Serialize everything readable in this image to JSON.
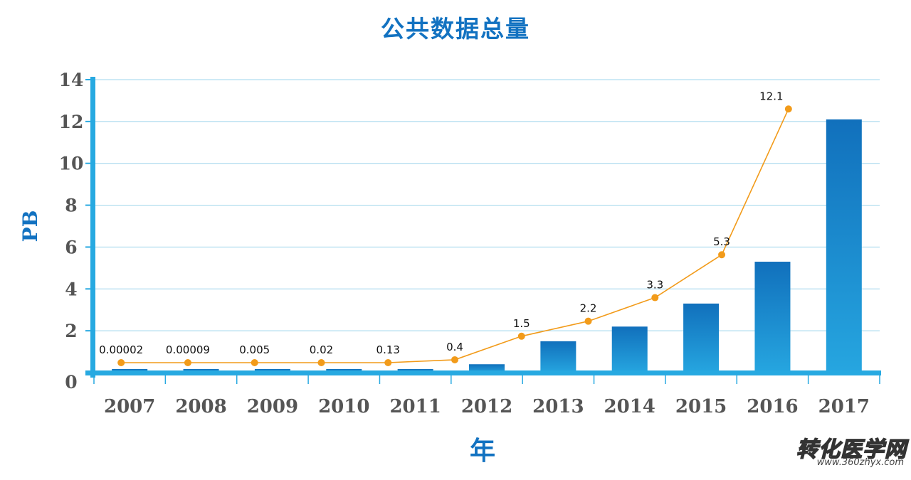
{
  "chart_data": {
    "type": "bar",
    "title": "公共数据总量",
    "xlabel": "年",
    "ylabel": "PB",
    "ylim": [
      0,
      14
    ],
    "yticks": [
      0,
      2,
      4,
      6,
      8,
      10,
      12,
      14
    ],
    "categories": [
      "2007",
      "2008",
      "2009",
      "2010",
      "2011",
      "2012",
      "2013",
      "2014",
      "2015",
      "2016",
      "2017"
    ],
    "series": [
      {
        "type": "bar",
        "values": [
          2e-05,
          9e-05,
          0.005,
          0.02,
          0.13,
          0.4,
          1.5,
          2.2,
          3.3,
          5.3,
          12.1
        ]
      },
      {
        "type": "line",
        "values": [
          2e-05,
          9e-05,
          0.005,
          0.02,
          0.13,
          0.4,
          1.5,
          2.2,
          3.3,
          5.3,
          12.1
        ],
        "labels": [
          "0.00002",
          "0.00009",
          "0.005",
          "0.02",
          "0.13",
          "0.4",
          "1.5",
          "2.2",
          "3.3",
          "5.3",
          "12.1"
        ]
      }
    ],
    "grid": true,
    "legend": "none",
    "colors": {
      "bar_top": "#1170bc",
      "bar_bottom": "#26a6e0",
      "line": "#f29b1a",
      "axis": "#27a9e1",
      "grid": "#9ed4ec",
      "title": "#1272c1"
    }
  },
  "watermark": {
    "text": "转化医学网",
    "url": "www.360zhyx.com"
  }
}
